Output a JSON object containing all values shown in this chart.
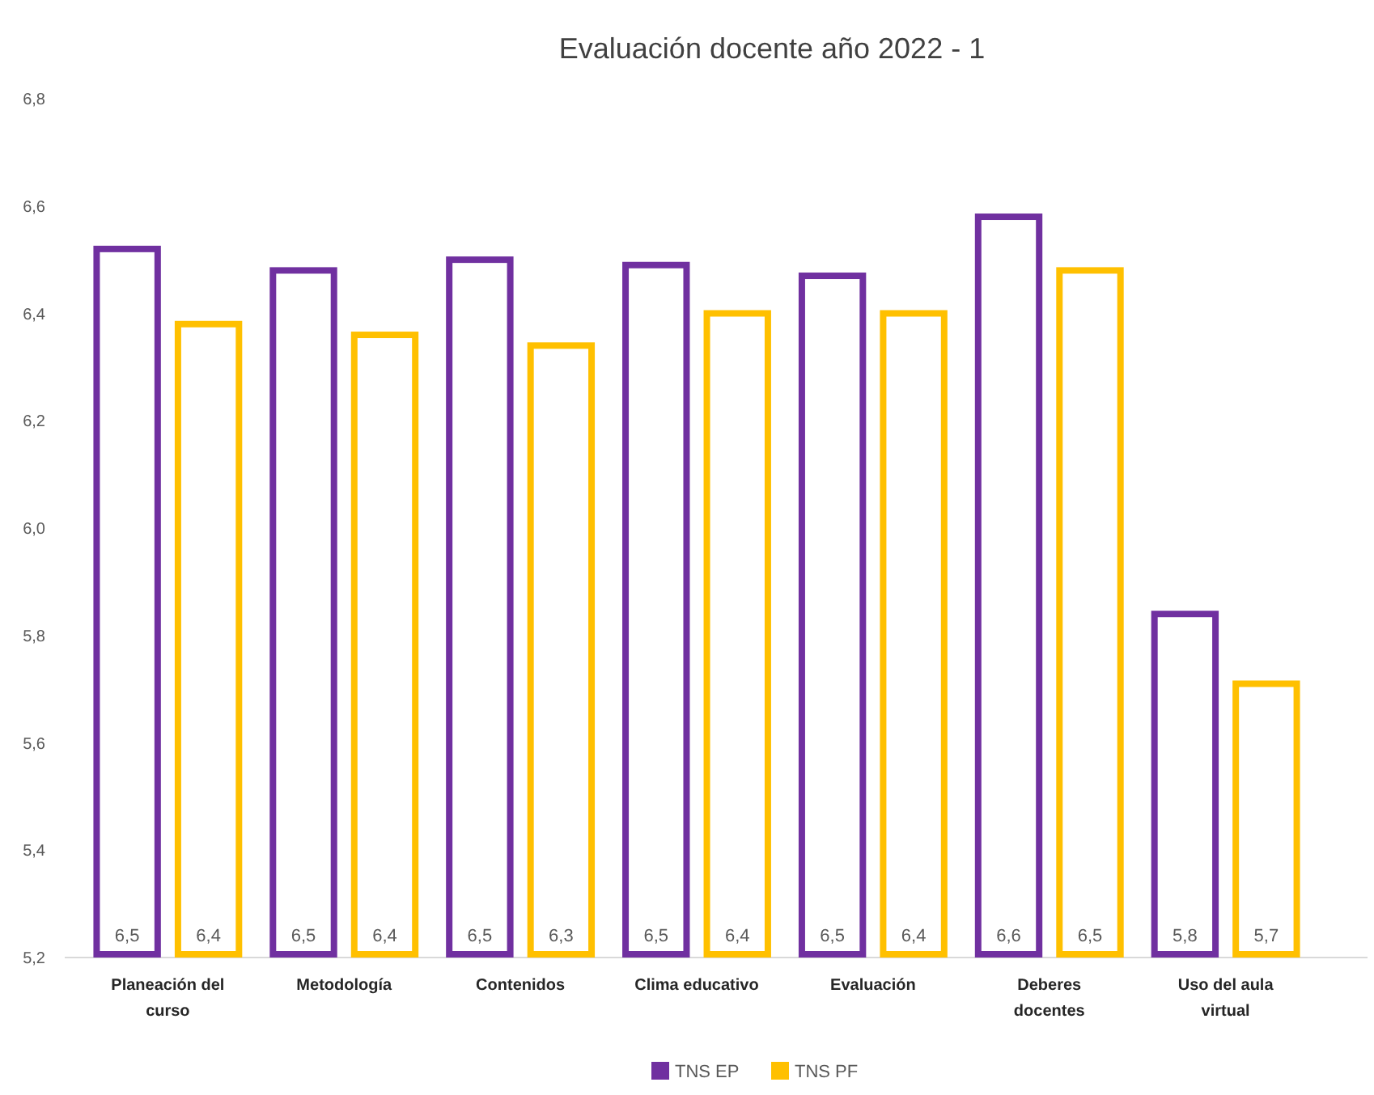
{
  "chart_data": {
    "type": "bar",
    "title": "Evaluación docente año 2022 - 1",
    "categories": [
      "Planeación del curso",
      "Metodología",
      "Contenidos",
      "Clima educativo",
      "Evaluación",
      "Deberes docentes",
      "Uso del aula virtual"
    ],
    "series": [
      {
        "name": "TNS EP",
        "color": "#7030a0",
        "values": [
          6.52,
          6.48,
          6.5,
          6.49,
          6.47,
          6.58,
          5.84
        ],
        "value_labels": [
          "6,5",
          "6,5",
          "6,5",
          "6,5",
          "6,5",
          "6,6",
          "5,8"
        ]
      },
      {
        "name": "TNS PF",
        "color": "#ffc000",
        "values": [
          6.38,
          6.36,
          6.34,
          6.4,
          6.4,
          6.48,
          5.71
        ],
        "value_labels": [
          "6,4",
          "6,4",
          "6,3",
          "6,4",
          "6,4",
          "6,5",
          "5,7"
        ]
      }
    ],
    "ylim": [
      5.2,
      6.8
    ],
    "yticks": [
      {
        "value": 5.2,
        "label": "5,2"
      },
      {
        "value": 5.4,
        "label": "5,4"
      },
      {
        "value": 5.6,
        "label": "5,6"
      },
      {
        "value": 5.8,
        "label": "5,8"
      },
      {
        "value": 6.0,
        "label": "6,0"
      },
      {
        "value": 6.2,
        "label": "6,2"
      },
      {
        "value": 6.4,
        "label": "6,4"
      },
      {
        "value": 6.6,
        "label": "6,6"
      },
      {
        "value": 6.8,
        "label": "6,8"
      }
    ],
    "legend": "bottom"
  }
}
